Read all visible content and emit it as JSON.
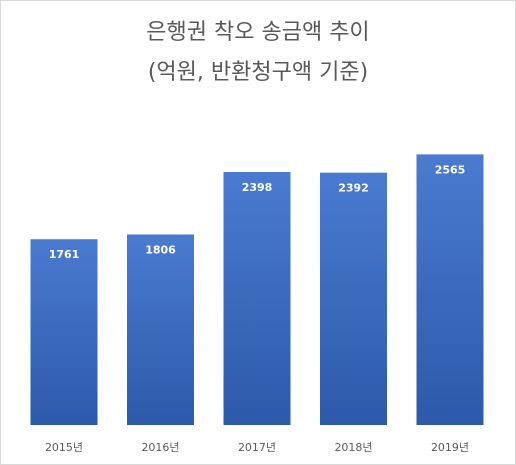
{
  "chart_data": {
    "type": "bar",
    "title": "은행권 착오 송금액 추이",
    "subtitle": "(억원, 반환청구액 기준)",
    "categories": [
      "2015년",
      "2016년",
      "2017년",
      "2018년",
      "2019년"
    ],
    "values": [
      1761,
      1806,
      2398,
      2392,
      2565
    ],
    "xlabel": "",
    "ylabel": "",
    "ylim": [
      0,
      2800
    ],
    "grid": false,
    "legend": "none",
    "data_labels": "inside-top",
    "colors": {
      "bar_top": "#4a7bd0",
      "bar_bottom": "#2d59aa",
      "text": "#595959",
      "label": "#ffffff"
    }
  }
}
